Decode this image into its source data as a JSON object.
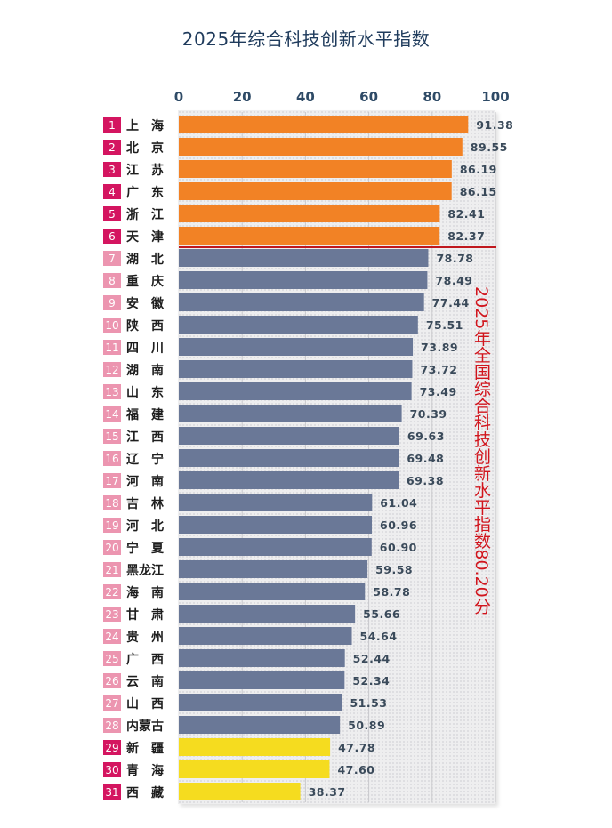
{
  "chart_data": {
    "type": "bar",
    "orientation": "horizontal",
    "title": "2025年综合科技创新水平指数",
    "xlim": [
      0,
      100
    ],
    "xticks": [
      0,
      20,
      40,
      60,
      80,
      100
    ],
    "ranks": [
      "1",
      "2",
      "3",
      "4",
      "5",
      "6",
      "7",
      "8",
      "9",
      "10",
      "11",
      "12",
      "13",
      "14",
      "15",
      "16",
      "17",
      "18",
      "19",
      "20",
      "21",
      "22",
      "23",
      "24",
      "25",
      "26",
      "27",
      "28",
      "29",
      "30",
      "31"
    ],
    "categories": [
      "上　海",
      "北　京",
      "江　苏",
      "广　东",
      "浙　江",
      "天　津",
      "湖　北",
      "重　庆",
      "安　徽",
      "陕　西",
      "四　川",
      "湖　南",
      "山　东",
      "福　建",
      "江　西",
      "辽　宁",
      "河　南",
      "吉　林",
      "河　北",
      "宁　夏",
      "黑龙江",
      "海　南",
      "甘　肃",
      "贵　州",
      "广　西",
      "云　南",
      "山　西",
      "内蒙古",
      "新　疆",
      "青　海",
      "西　藏"
    ],
    "values": [
      91.38,
      89.55,
      86.19,
      86.15,
      82.41,
      82.37,
      78.78,
      78.49,
      77.44,
      75.51,
      73.89,
      73.72,
      73.49,
      70.39,
      69.63,
      69.48,
      69.38,
      61.04,
      60.96,
      60.9,
      59.58,
      58.78,
      55.66,
      54.64,
      52.44,
      52.34,
      51.53,
      50.89,
      47.78,
      47.6,
      38.37
    ],
    "value_labels": [
      "91.38",
      "89.55",
      "86.19",
      "86.15",
      "82.41",
      "82.37",
      "78.78",
      "78.49",
      "77.44",
      "75.51",
      "73.89",
      "73.72",
      "73.49",
      "70.39",
      "69.63",
      "69.48",
      "69.38",
      "61.04",
      "60.96",
      "60.90",
      "59.58",
      "58.78",
      "55.66",
      "54.64",
      "52.44",
      "52.34",
      "51.53",
      "50.89",
      "47.78",
      "47.60",
      "38.37"
    ],
    "groups": [
      "top",
      "top",
      "top",
      "top",
      "top",
      "top",
      "mid",
      "mid",
      "mid",
      "mid",
      "mid",
      "mid",
      "mid",
      "mid",
      "mid",
      "mid",
      "mid",
      "mid",
      "mid",
      "mid",
      "mid",
      "mid",
      "mid",
      "mid",
      "mid",
      "mid",
      "mid",
      "mid",
      "low",
      "low",
      "low"
    ],
    "colors": {
      "top": "#f28225",
      "mid": "#6a7897",
      "low": "#f5dc1f",
      "rank_dark": "#d41560",
      "rank_light": "#ec95b0",
      "divider": "#c0181e"
    },
    "annotation": "2025年全国综合科技创新水平指数80.20分"
  }
}
